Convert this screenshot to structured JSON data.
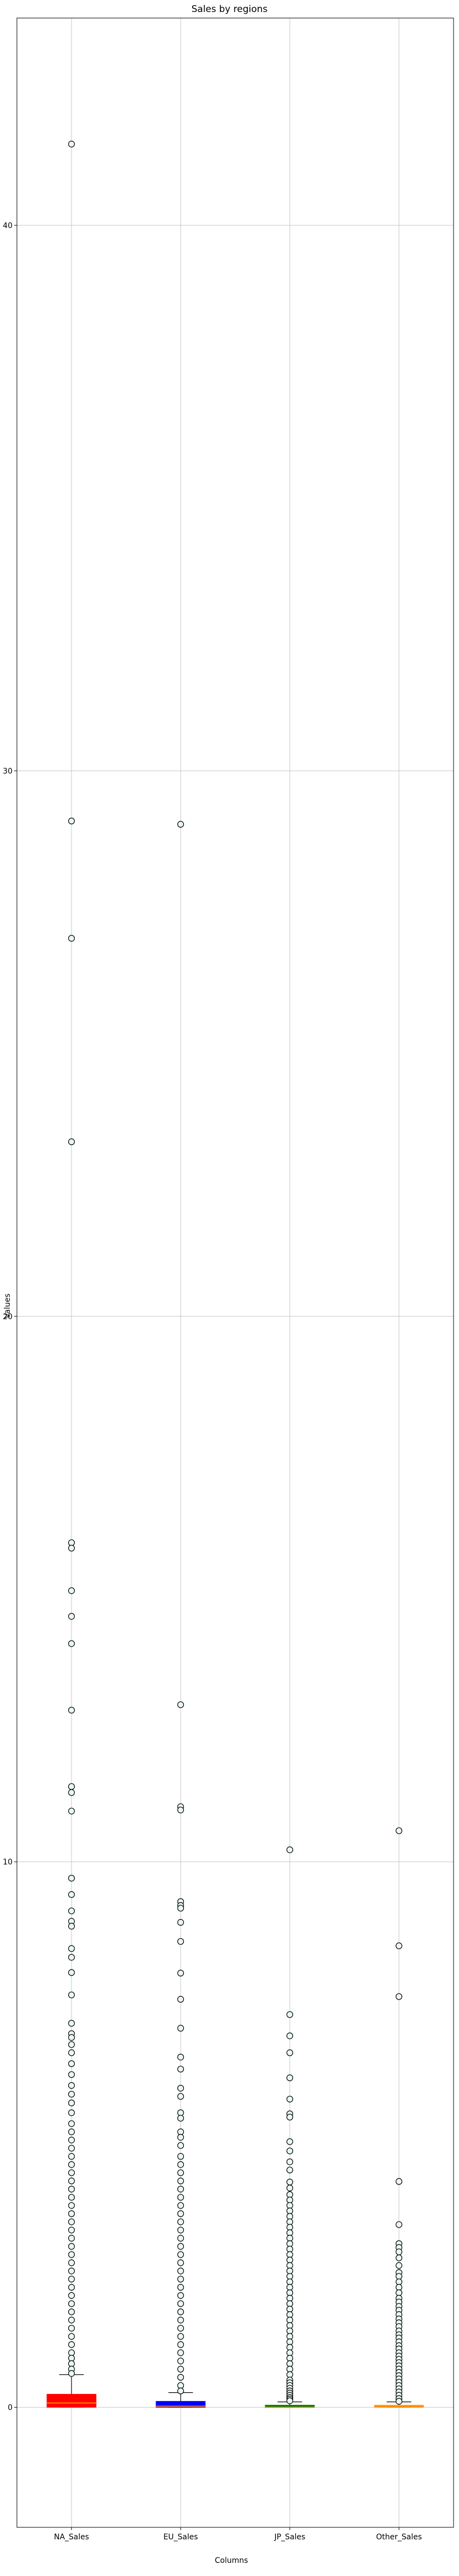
{
  "chart_data": {
    "type": "box",
    "title": "Sales by regions",
    "xlabel": "Columns",
    "ylabel": "Values",
    "ylim": [
      -2.2,
      43.8
    ],
    "yticks": [
      0,
      10,
      20,
      30,
      40
    ],
    "grid": true,
    "categories": [
      "NA_Sales",
      "EU_Sales",
      "JP_Sales",
      "Other_Sales"
    ],
    "box_colors": [
      "#ff0000",
      "#0000ff",
      "#008000",
      "#ffa500"
    ],
    "series": [
      {
        "category": "NA_Sales",
        "q1": 0.0,
        "median": 0.08,
        "q3": 0.24,
        "whisker_low": 0.0,
        "whisker_high": 0.6,
        "outliers": [
          41.49,
          29.08,
          26.93,
          23.2,
          15.85,
          15.75,
          14.97,
          14.5,
          14.0,
          12.78,
          11.38,
          11.27,
          10.93,
          9.7,
          9.4,
          9.1,
          8.91,
          8.82,
          8.41,
          8.25,
          7.97,
          7.56,
          7.04,
          6.85,
          6.78,
          6.65,
          6.5,
          6.3,
          6.1,
          5.9,
          5.74,
          5.58,
          5.4,
          5.2,
          5.05,
          4.9,
          4.75,
          4.6,
          4.45,
          4.3,
          4.15,
          4.0,
          3.85,
          3.7,
          3.55,
          3.4,
          3.25,
          3.1,
          2.95,
          2.8,
          2.65,
          2.5,
          2.35,
          2.2,
          2.05,
          1.9,
          1.75,
          1.6,
          1.45,
          1.3,
          1.15,
          1.0,
          0.9,
          0.8,
          0.7,
          0.62
        ]
      },
      {
        "category": "EU_Sales",
        "q1": 0.0,
        "median": 0.02,
        "q3": 0.11,
        "whisker_low": 0.0,
        "whisker_high": 0.27,
        "outliers": [
          29.02,
          12.88,
          11.01,
          10.95,
          9.27,
          9.2,
          9.15,
          8.89,
          8.54,
          7.96,
          7.48,
          6.95,
          6.42,
          6.2,
          5.85,
          5.7,
          5.4,
          5.3,
          5.05,
          4.95,
          4.8,
          4.6,
          4.45,
          4.3,
          4.15,
          4.0,
          3.85,
          3.7,
          3.55,
          3.4,
          3.25,
          3.1,
          2.95,
          2.8,
          2.65,
          2.5,
          2.35,
          2.2,
          2.05,
          1.9,
          1.75,
          1.6,
          1.45,
          1.3,
          1.15,
          1.0,
          0.85,
          0.7,
          0.55,
          0.4,
          0.3
        ]
      },
      {
        "category": "JP_Sales",
        "q1": 0.0,
        "median": 0.0,
        "q3": 0.04,
        "whisker_low": 0.0,
        "whisker_high": 0.1,
        "outliers": [
          10.22,
          7.2,
          6.81,
          6.5,
          6.04,
          5.65,
          5.38,
          5.32,
          4.87,
          4.7,
          4.5,
          4.35,
          4.13,
          4.02,
          3.9,
          3.8,
          3.7,
          3.6,
          3.5,
          3.4,
          3.3,
          3.2,
          3.1,
          3.0,
          2.9,
          2.8,
          2.7,
          2.6,
          2.5,
          2.4,
          2.3,
          2.2,
          2.1,
          2.0,
          1.9,
          1.8,
          1.7,
          1.6,
          1.5,
          1.4,
          1.3,
          1.2,
          1.1,
          1.0,
          0.9,
          0.8,
          0.7,
          0.6,
          0.5,
          0.45,
          0.4,
          0.35,
          0.3,
          0.26,
          0.22,
          0.18,
          0.15,
          0.12
        ]
      },
      {
        "category": "Other_Sales",
        "q1": 0.0,
        "median": 0.01,
        "q3": 0.04,
        "whisker_low": 0.0,
        "whisker_high": 0.1,
        "outliers": [
          10.57,
          8.46,
          7.53,
          4.14,
          3.35,
          3.0,
          2.93,
          2.85,
          2.74,
          2.6,
          2.47,
          2.4,
          2.3,
          2.2,
          2.1,
          2.0,
          1.93,
          1.85,
          1.78,
          1.7,
          1.62,
          1.55,
          1.48,
          1.4,
          1.33,
          1.27,
          1.2,
          1.13,
          1.07,
          1.0,
          0.94,
          0.88,
          0.82,
          0.76,
          0.7,
          0.64,
          0.58,
          0.52,
          0.46,
          0.4,
          0.34,
          0.28,
          0.22,
          0.16,
          0.11
        ]
      }
    ]
  }
}
